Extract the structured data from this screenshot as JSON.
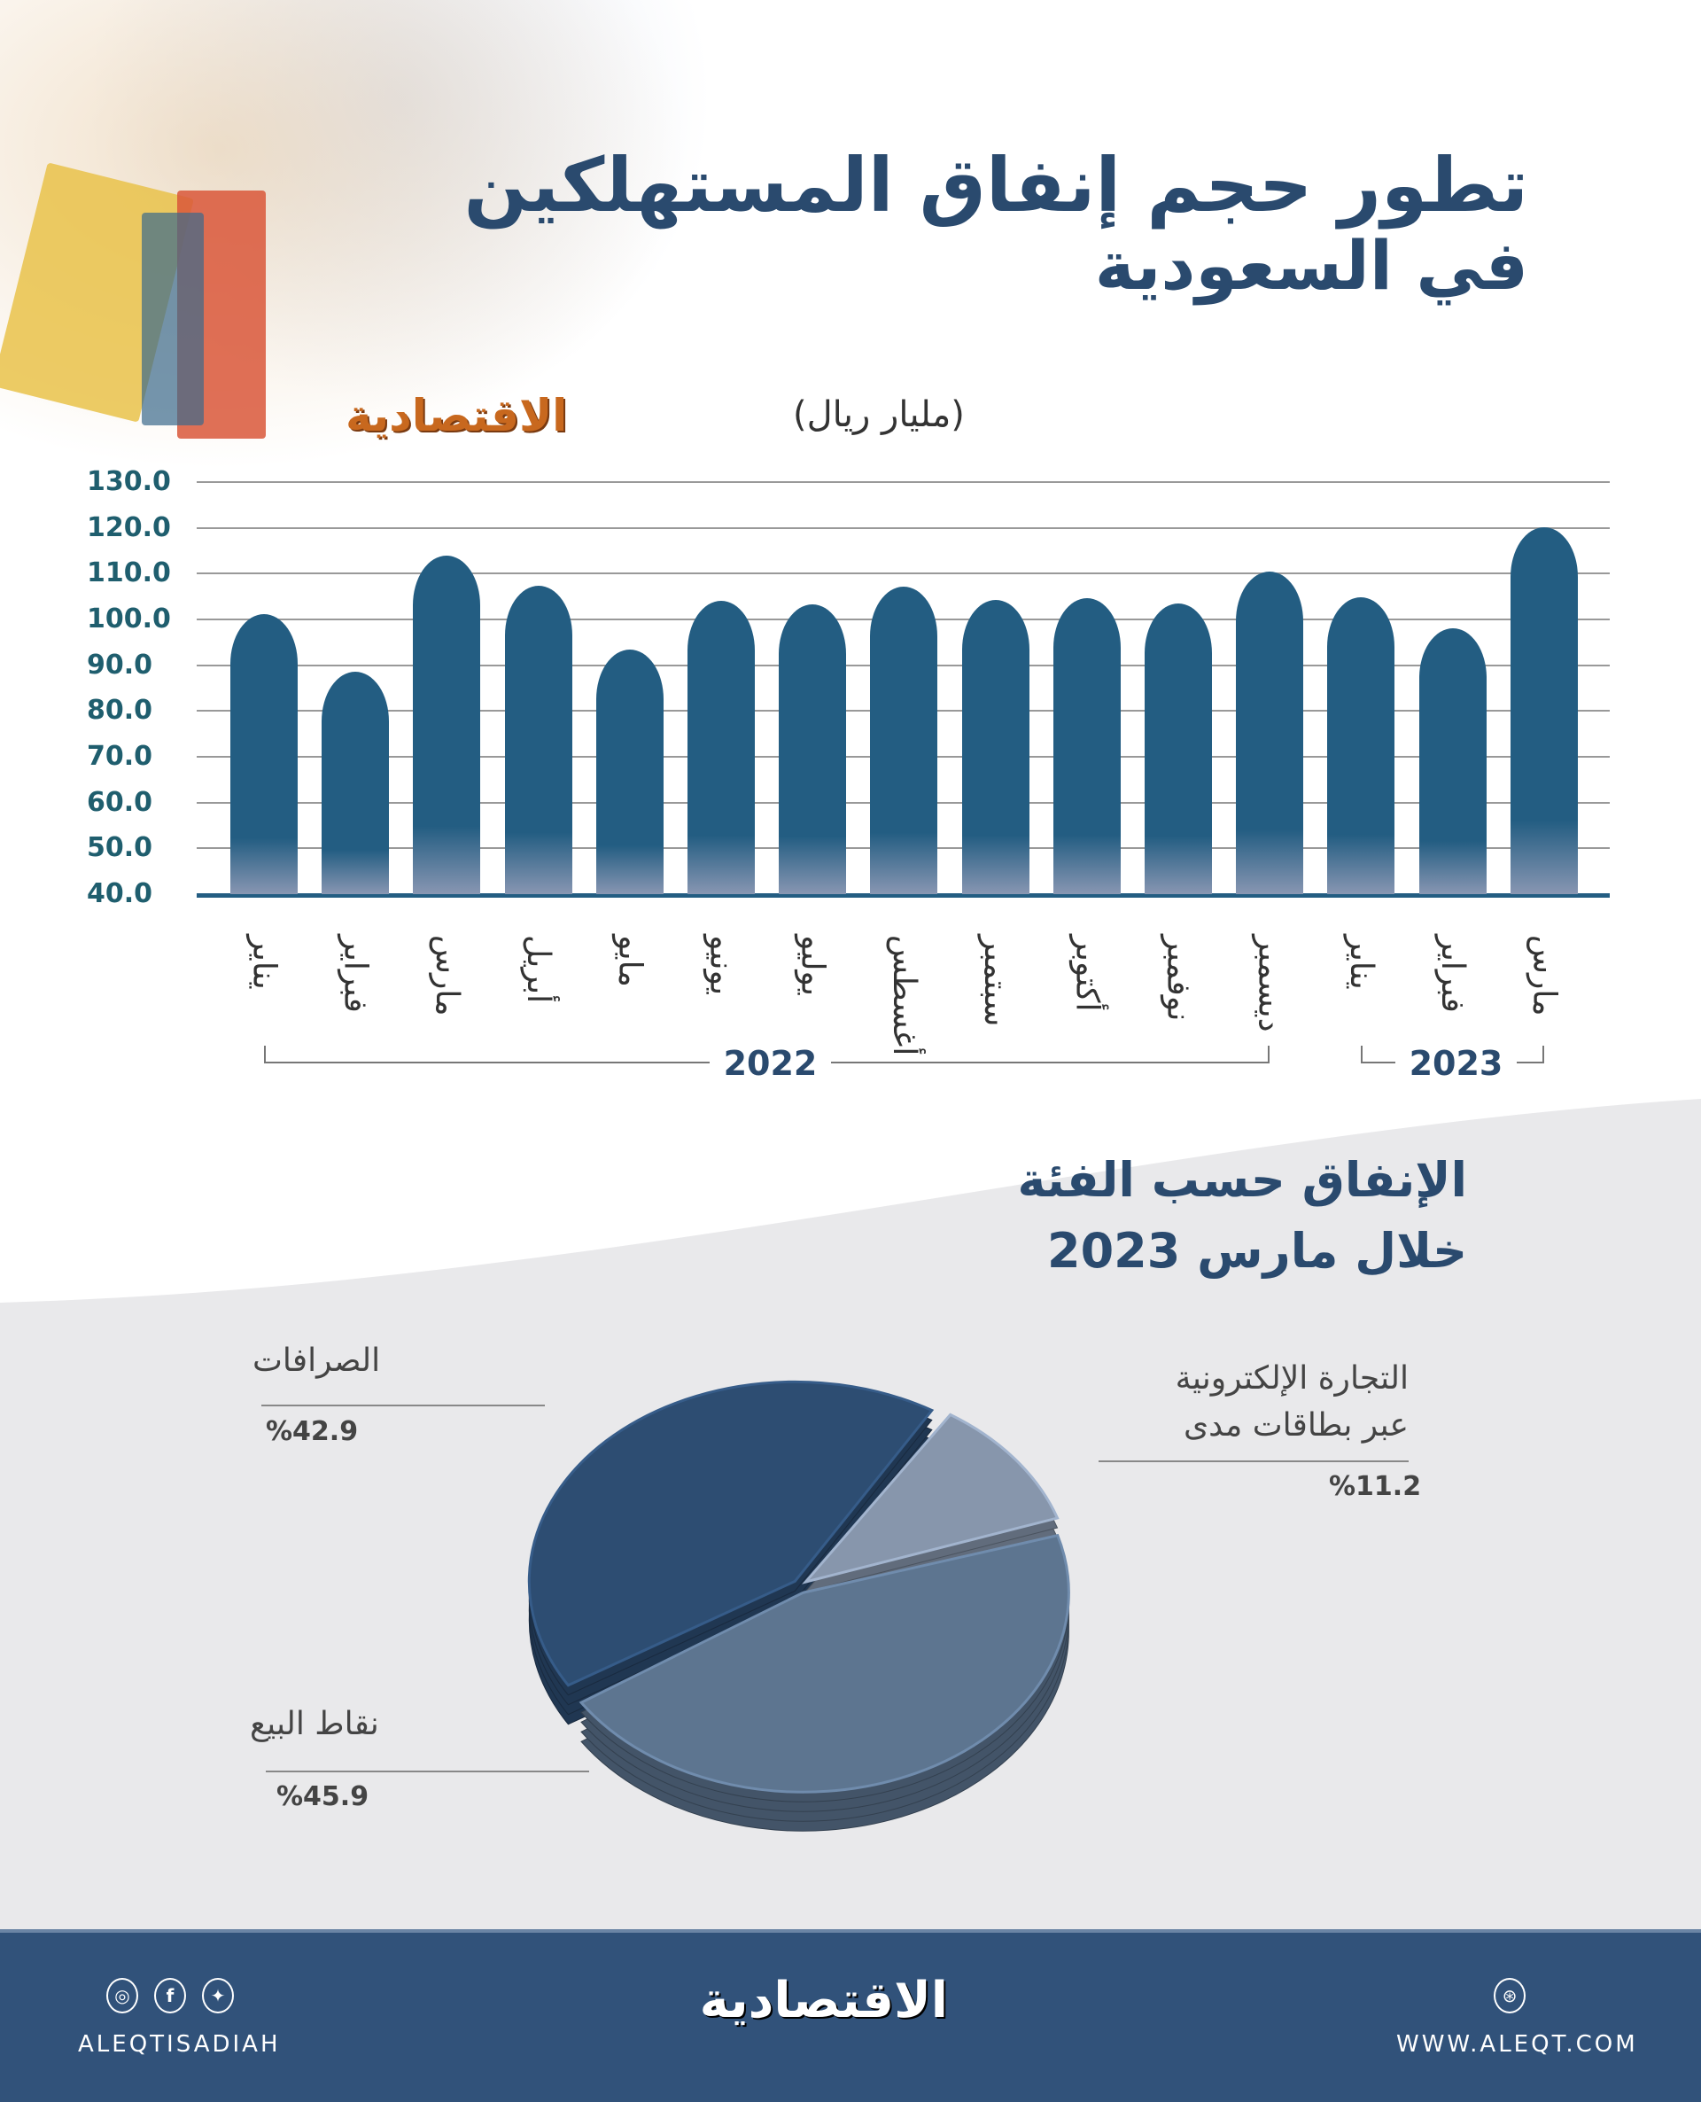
{
  "header": {
    "title_line1": "تطور حجم إنفاق المستهلكين",
    "title_line2": "في السعودية",
    "logo": "الاقتصادية",
    "unit": "(مليار ريال)"
  },
  "chart_data": [
    {
      "type": "bar",
      "ylim": [
        40,
        130
      ],
      "yticks": [
        "130.0",
        "120.0",
        "110.0",
        "100.0",
        "90.0",
        "80.0",
        "70.0",
        "60.0",
        "50.0",
        "40.0"
      ],
      "categories": [
        "يناير",
        "فبراير",
        "مارس",
        "أبريل",
        "مايو",
        "يونيو",
        "يوليو",
        "أغسطس",
        "سبتمبر",
        "أكتوبر",
        "نوفمبر",
        "ديسمبر",
        "يناير",
        "فبراير",
        "مارس"
      ],
      "groups": [
        {
          "label": "2022",
          "count": 12
        },
        {
          "label": "2023",
          "count": 3
        }
      ],
      "values": [
        101.1,
        88.5,
        113.9,
        107.3,
        93.4,
        104.1,
        103.3,
        107.2,
        104.3,
        104.6,
        103.5,
        110.4,
        104.9,
        98.1,
        120.1
      ],
      "color": "#235d82",
      "grid": true
    },
    {
      "type": "pie",
      "title_line1": "الإنفاق حسب الفئة",
      "title_line2": "خلال مارس 2023",
      "slices": [
        {
          "label": "التجارة الإلكترونية",
          "label_line2": "عبر بطاقات مدى",
          "value": 11.2,
          "display": "%11.2",
          "color": "#8796ac"
        },
        {
          "label": "نقاط البيع",
          "value": 45.9,
          "display": "%45.9",
          "color": "#5d7590"
        },
        {
          "label": "الصرافات",
          "value": 42.9,
          "display": "%42.9",
          "color": "#2d4d72"
        }
      ]
    }
  ],
  "footer": {
    "handle": "ALEQTISADIAH",
    "logo": "الاقتصادية",
    "website": "WWW.ALEQT.COM",
    "social": [
      "instagram-icon",
      "facebook-icon",
      "twitter-icon"
    ],
    "brand_color": "#31527a"
  }
}
